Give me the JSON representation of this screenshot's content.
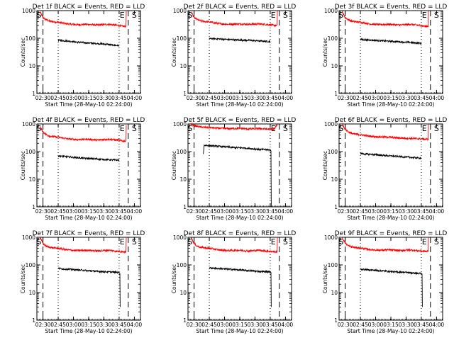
{
  "chart_data": {
    "type": "line",
    "layout": "3x3 grid of time-series panels",
    "colors": {
      "events": "#000000",
      "lld": "#ff0000",
      "frame": "#000000"
    },
    "shared": {
      "ylabel": "Counts/sec",
      "xlabel": "Start Time (28-May-10 02:24:00)",
      "x_ticks": [
        "02:30",
        "02:45",
        "03:00",
        "03:15",
        "03:30",
        "03:45",
        "04:00"
      ],
      "x_tick_minutes": [
        6,
        21,
        36,
        51,
        66,
        81,
        96
      ],
      "xlim_minutes_after_start": [
        0,
        102
      ],
      "y_scale": "log",
      "ylim": [
        1,
        1000
      ],
      "y_ticks": [
        "1",
        "10",
        "100",
        "1000"
      ],
      "y_tick_values": [
        1,
        10,
        100,
        1000
      ],
      "dashed_lines_minutes": [
        6,
        90
      ],
      "dotted_lines_minutes": [
        21,
        81
      ],
      "marker_labels": {
        "eclipse_end": "E",
        "saa_start": "S"
      }
    },
    "panels": [
      {
        "title": "Det 1f BLACK = Events, RED = LLD",
        "lld_series": {
          "name": "RED = LLD",
          "x_minutes": [
            3,
            6,
            9,
            12,
            15,
            21,
            30,
            40,
            50,
            60,
            70,
            80,
            85,
            88
          ],
          "values": [
            900,
            560,
            470,
            420,
            400,
            380,
            330,
            310,
            320,
            300,
            320,
            290,
            270,
            1000
          ]
        },
        "events_series": {
          "name": "BLACK = Events",
          "x_minutes": [
            21,
            25,
            30,
            35,
            40,
            45,
            50,
            55,
            60,
            65,
            70,
            75,
            81
          ],
          "values": [
            85,
            82,
            80,
            76,
            72,
            70,
            68,
            66,
            64,
            62,
            60,
            56,
            54
          ]
        },
        "dashed_lines_minutes": [
          6,
          90
        ],
        "dotted_lines_minutes": [
          21,
          81
        ],
        "e_label_minutes": 84,
        "s_label_minutes": 96
      },
      {
        "title": "Det 2f BLACK = Events, RED = LLD",
        "lld_series": {
          "name": "RED = LLD",
          "x_minutes": [
            3,
            6,
            9,
            12,
            15,
            21,
            30,
            40,
            50,
            60,
            70,
            80,
            85,
            88
          ],
          "values": [
            900,
            560,
            480,
            430,
            410,
            390,
            340,
            320,
            330,
            320,
            330,
            310,
            290,
            1000
          ]
        },
        "events_series": {
          "name": "BLACK = Events",
          "x_minutes": [
            21,
            25,
            30,
            35,
            40,
            45,
            50,
            55,
            60,
            65,
            70,
            75,
            81
          ],
          "values": [
            98,
            96,
            95,
            92,
            90,
            88,
            86,
            85,
            84,
            82,
            80,
            78,
            76
          ]
        },
        "dashed_lines_minutes": [
          6,
          90
        ],
        "dotted_lines_minutes": [
          21,
          81
        ],
        "e_label_minutes": 84,
        "s_label_minutes": 96
      },
      {
        "title": "Det 3f BLACK = Events, RED = LLD",
        "lld_series": {
          "name": "RED = LLD",
          "x_minutes": [
            3,
            6,
            9,
            12,
            15,
            21,
            30,
            40,
            50,
            60,
            70,
            80,
            85,
            88
          ],
          "values": [
            900,
            560,
            470,
            420,
            400,
            380,
            330,
            310,
            320,
            300,
            320,
            290,
            270,
            1000
          ]
        },
        "events_series": {
          "name": "BLACK = Events",
          "x_minutes": [
            21,
            25,
            30,
            35,
            40,
            45,
            50,
            55,
            60,
            65,
            70,
            75,
            81
          ],
          "values": [
            90,
            88,
            86,
            84,
            82,
            80,
            78,
            76,
            74,
            72,
            70,
            68,
            66
          ]
        },
        "dashed_lines_minutes": [
          6,
          90
        ],
        "dotted_lines_minutes": [
          21,
          81
        ],
        "e_label_minutes": 84,
        "s_label_minutes": 96
      },
      {
        "title": "Det 4f BLACK = Events, RED = LLD",
        "lld_series": {
          "name": "RED = LLD",
          "x_minutes": [
            3,
            6,
            9,
            12,
            15,
            21,
            30,
            40,
            50,
            60,
            70,
            80,
            85,
            88
          ],
          "values": [
            800,
            520,
            420,
            370,
            350,
            330,
            290,
            270,
            280,
            260,
            280,
            260,
            240,
            900
          ]
        },
        "events_series": {
          "name": "BLACK = Events",
          "x_minutes": [
            21,
            25,
            30,
            35,
            40,
            45,
            50,
            55,
            60,
            65,
            70,
            75,
            81
          ],
          "values": [
            70,
            68,
            65,
            62,
            60,
            58,
            56,
            55,
            54,
            52,
            51,
            50,
            48
          ]
        },
        "dashed_lines_minutes": [
          6,
          90
        ],
        "dotted_lines_minutes": [
          21,
          81
        ],
        "e_label_minutes": 84,
        "s_label_minutes": 96
      },
      {
        "title": "Det 5f BLACK = Events, RED = LLD",
        "lld_series": {
          "name": "RED = LLD",
          "x_minutes": [
            3,
            6,
            9,
            12,
            15,
            21,
            30,
            40,
            50,
            60,
            70,
            80,
            85,
            88
          ],
          "values": [
            1000,
            880,
            820,
            780,
            760,
            740,
            700,
            680,
            690,
            660,
            680,
            650,
            640,
            1000
          ]
        },
        "events_series": {
          "name": "BLACK = Events",
          "x_minutes": [
            15,
            16,
            20,
            25,
            30,
            35,
            40,
            45,
            50,
            55,
            60,
            65,
            70,
            75,
            80,
            81,
            82
          ],
          "values": [
            80,
            170,
            165,
            160,
            155,
            150,
            145,
            140,
            138,
            135,
            130,
            125,
            120,
            118,
            115,
            110,
            1
          ]
        },
        "dashed_lines_minutes": [
          6,
          90
        ],
        "dotted_lines_minutes": [
          21,
          81
        ],
        "e_label_minutes": 84,
        "s_label_minutes": 96
      },
      {
        "title": "Det 6f BLACK = Events, RED = LLD",
        "lld_series": {
          "name": "RED = LLD",
          "x_minutes": [
            3,
            6,
            9,
            12,
            15,
            21,
            30,
            40,
            50,
            60,
            70,
            80,
            85,
            88
          ],
          "values": [
            1000,
            650,
            520,
            460,
            430,
            410,
            360,
            340,
            330,
            310,
            300,
            290,
            280,
            1000
          ]
        },
        "events_series": {
          "name": "BLACK = Events",
          "x_minutes": [
            21,
            25,
            30,
            35,
            40,
            45,
            50,
            55,
            60,
            65,
            70,
            75,
            81
          ],
          "values": [
            85,
            82,
            80,
            78,
            75,
            72,
            70,
            68,
            66,
            64,
            62,
            60,
            58
          ]
        },
        "dashed_lines_minutes": [
          6,
          90
        ],
        "dotted_lines_minutes": [
          21,
          81
        ],
        "e_label_minutes": 84,
        "s_label_minutes": 96
      },
      {
        "title": "Det 7f BLACK = Events, RED = LLD",
        "lld_series": {
          "name": "RED = LLD",
          "x_minutes": [
            3,
            6,
            9,
            12,
            15,
            21,
            30,
            40,
            50,
            60,
            70,
            80,
            85,
            88
          ],
          "values": [
            1000,
            600,
            480,
            440,
            420,
            400,
            350,
            330,
            340,
            320,
            340,
            310,
            300,
            1000
          ]
        },
        "events_series": {
          "name": "BLACK = Events",
          "x_minutes": [
            21,
            25,
            30,
            35,
            40,
            45,
            50,
            55,
            60,
            65,
            70,
            75,
            80,
            81,
            82
          ],
          "values": [
            75,
            72,
            70,
            68,
            66,
            64,
            62,
            60,
            58,
            57,
            56,
            55,
            54,
            52,
            3
          ]
        },
        "dashed_lines_minutes": [
          6,
          90
        ],
        "dotted_lines_minutes": [
          21,
          81
        ],
        "e_label_minutes": 84,
        "s_label_minutes": 96
      },
      {
        "title": "Det 8f BLACK = Events, RED = LLD",
        "lld_series": {
          "name": "RED = LLD",
          "x_minutes": [
            3,
            6,
            9,
            12,
            15,
            21,
            30,
            40,
            50,
            60,
            70,
            80,
            85,
            88
          ],
          "values": [
            1000,
            600,
            480,
            440,
            420,
            400,
            350,
            330,
            340,
            320,
            340,
            310,
            300,
            1000
          ]
        },
        "events_series": {
          "name": "BLACK = Events",
          "x_minutes": [
            21,
            25,
            30,
            35,
            40,
            45,
            50,
            55,
            60,
            65,
            70,
            75,
            80,
            81,
            82
          ],
          "values": [
            78,
            76,
            74,
            72,
            70,
            68,
            66,
            64,
            62,
            60,
            58,
            57,
            56,
            55,
            3
          ]
        },
        "dashed_lines_minutes": [
          6,
          90
        ],
        "dotted_lines_minutes": [
          21,
          81
        ],
        "e_label_minutes": 84,
        "s_label_minutes": 96
      },
      {
        "title": "Det 9f BLACK = Events, RED = LLD",
        "lld_series": {
          "name": "RED = LLD",
          "x_minutes": [
            3,
            6,
            9,
            12,
            15,
            21,
            30,
            40,
            50,
            60,
            70,
            80,
            85,
            88
          ],
          "values": [
            1000,
            620,
            500,
            450,
            430,
            410,
            360,
            340,
            350,
            330,
            350,
            320,
            310,
            1000
          ]
        },
        "events_series": {
          "name": "BLACK = Events",
          "x_minutes": [
            21,
            25,
            30,
            35,
            40,
            45,
            50,
            55,
            60,
            65,
            70,
            75,
            80,
            81,
            82
          ],
          "values": [
            70,
            68,
            66,
            64,
            62,
            60,
            58,
            56,
            55,
            54,
            52,
            50,
            49,
            48,
            3
          ]
        },
        "dashed_lines_minutes": [
          6,
          90
        ],
        "dotted_lines_minutes": [
          21,
          81
        ],
        "e_label_minutes": 84,
        "s_label_minutes": 96
      }
    ]
  }
}
